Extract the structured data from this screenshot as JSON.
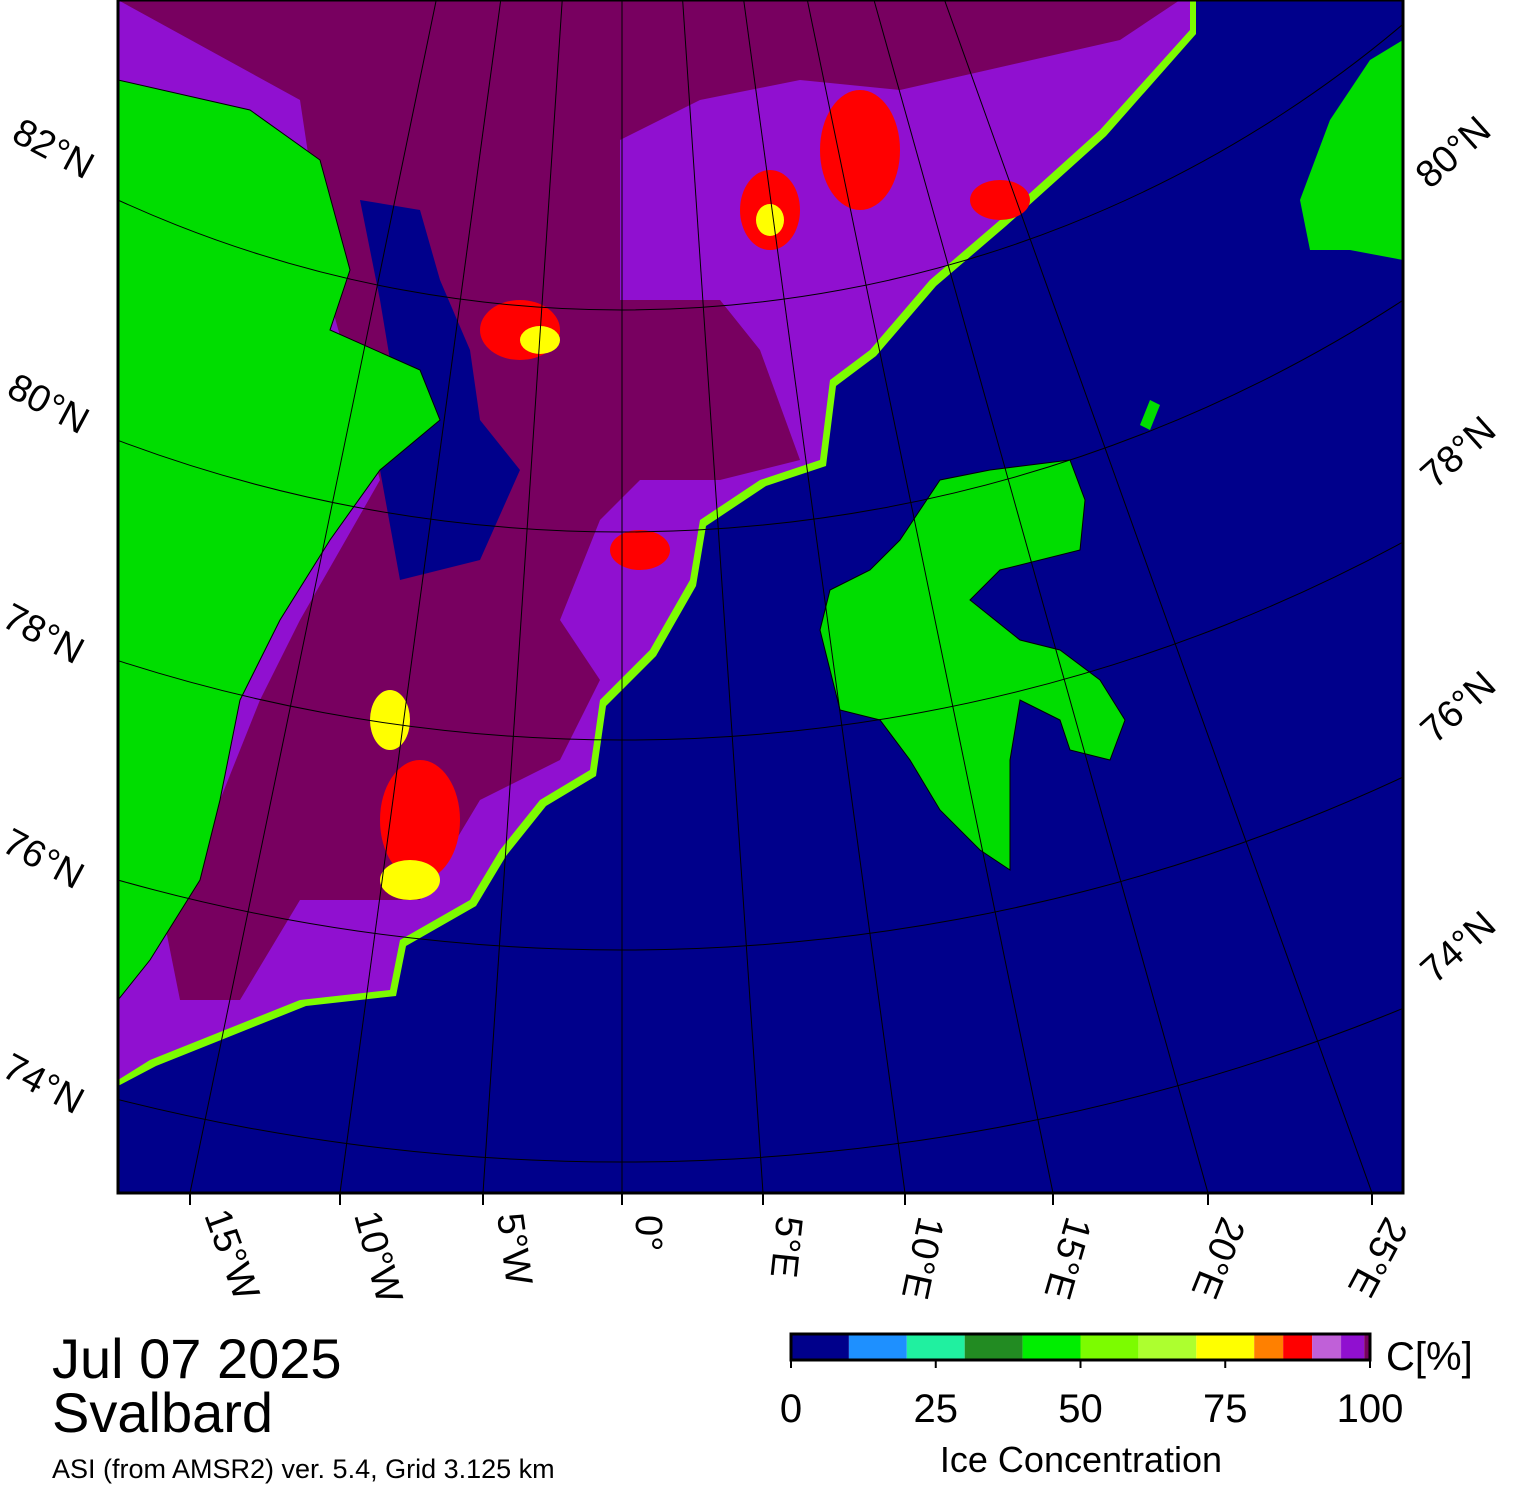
{
  "map": {
    "latitude_labels_left": [
      "82°N",
      "80°N",
      "78°N",
      "76°N",
      "74°N"
    ],
    "latitude_labels_right": [
      "80°N",
      "78°N",
      "76°N",
      "74°N"
    ],
    "longitude_labels": [
      "15°W",
      "10°W",
      "5°W",
      "0°",
      "5°E",
      "10°E",
      "15°E",
      "20°E",
      "25°E"
    ]
  },
  "footer": {
    "date": "Jul 07 2025",
    "region": "Svalbard",
    "source": "ASI (from AMSR2) ver. 5.4,  Grid 3.125 km"
  },
  "colorbar": {
    "unit": "C[%]",
    "label": "Ice Concentration",
    "bounds": [
      0,
      10,
      20,
      30,
      40,
      50,
      60,
      70,
      80,
      85,
      90,
      95,
      99,
      100
    ],
    "colors": [
      "#00008b",
      "#1e90ff",
      "#20f0a0",
      "#228b22",
      "#00ee00",
      "#7cfc00",
      "#adff2f",
      "#ffff00",
      "#ff8000",
      "#ff0000",
      "#c060d8",
      "#9010d0",
      "#780060"
    ],
    "ticks": [
      0,
      25,
      50,
      75,
      100
    ]
  }
}
